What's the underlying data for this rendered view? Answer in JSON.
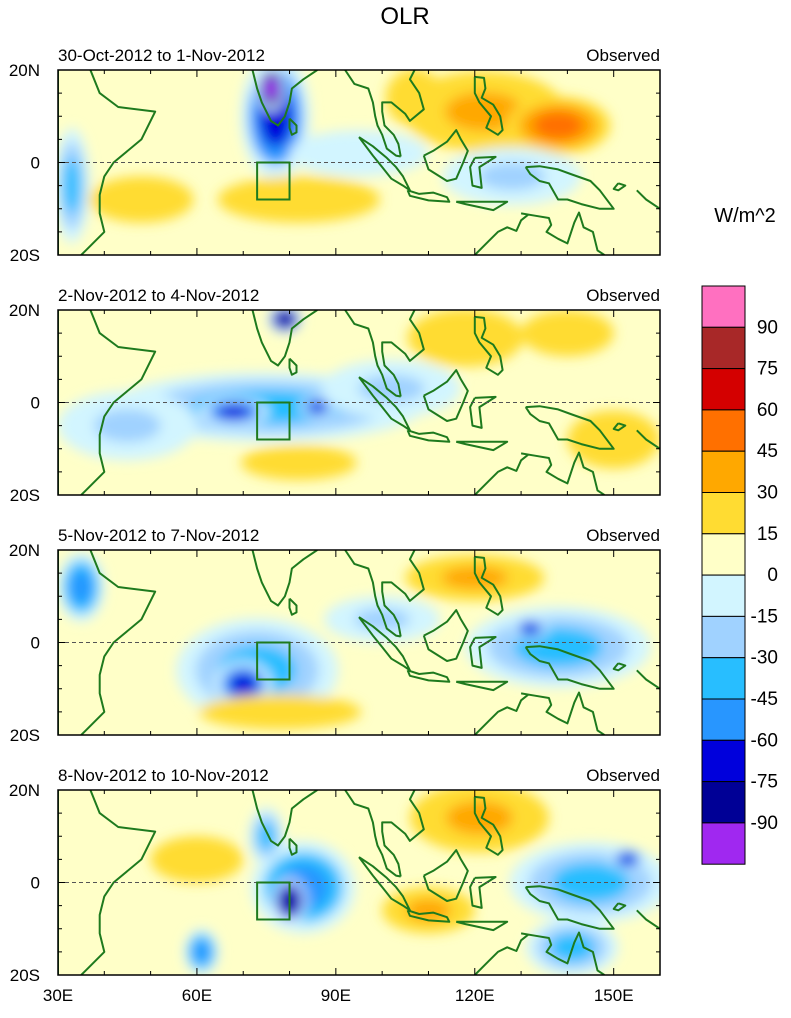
{
  "chart_data": {
    "type": "heatmap",
    "title": "OLR",
    "colorbar": {
      "unit": "W/m^2",
      "labels": [
        "90",
        "75",
        "60",
        "45",
        "30",
        "15",
        "0",
        "-15",
        "-30",
        "-45",
        "-60",
        "-75",
        "-90"
      ],
      "colors": [
        "#ff70c0",
        "#a82828",
        "#d40000",
        "#ff7000",
        "#ffa800",
        "#ffdc32",
        "#ffffc8",
        "#d2f5ff",
        "#a0d2ff",
        "#28beff",
        "#2896ff",
        "#0000dc",
        "#000096",
        "#a028f0"
      ]
    },
    "xlim": [
      30,
      160
    ],
    "ylim": [
      -20,
      20
    ],
    "xticks": [
      {
        "v": 30,
        "label": "30E"
      },
      {
        "v": 60,
        "label": "60E"
      },
      {
        "v": 90,
        "label": "90E"
      },
      {
        "v": 120,
        "label": "120E"
      },
      {
        "v": 150,
        "label": "150E"
      }
    ],
    "yticks": [
      {
        "v": 20,
        "label": "20N"
      },
      {
        "v": 0,
        "label": "0"
      },
      {
        "v": -20,
        "label": "20S"
      }
    ],
    "box_region": {
      "lon": [
        73,
        80
      ],
      "lat": [
        -8,
        0
      ]
    },
    "panels": [
      {
        "period": "30-Oct-2012 to 1-Nov-2012",
        "tag": "Observed",
        "anomalies": [
          {
            "lon": 77,
            "lat": 10,
            "rx": 6,
            "ry": 11,
            "value": -75
          },
          {
            "lon": 76,
            "lat": 16,
            "rx": 2.5,
            "ry": 4,
            "value": -95
          },
          {
            "lon": 122,
            "lat": 11,
            "rx": 14,
            "ry": 7,
            "value": 40
          },
          {
            "lon": 138,
            "lat": 8,
            "rx": 9,
            "ry": 5,
            "value": 50
          },
          {
            "lon": 107,
            "lat": 14,
            "rx": 5,
            "ry": 5,
            "value": 20
          },
          {
            "lon": 82,
            "lat": -8,
            "rx": 14,
            "ry": 4,
            "value": 20
          },
          {
            "lon": 48,
            "lat": -8,
            "rx": 9,
            "ry": 4,
            "value": 15
          },
          {
            "lon": 33,
            "lat": -5,
            "rx": 3,
            "ry": 10,
            "value": -40
          },
          {
            "lon": 128,
            "lat": -3,
            "rx": 12,
            "ry": 5,
            "value": -20
          },
          {
            "lon": 95,
            "lat": 2,
            "rx": 12,
            "ry": 4,
            "value": -15
          }
        ]
      },
      {
        "period": "2-Nov-2012 to 4-Nov-2012",
        "tag": "Observed",
        "anomalies": [
          {
            "lon": 75,
            "lat": -1,
            "rx": 27,
            "ry": 6,
            "value": -45
          },
          {
            "lon": 68,
            "lat": -2,
            "rx": 6,
            "ry": 2.5,
            "value": -75
          },
          {
            "lon": 86,
            "lat": -1,
            "rx": 3,
            "ry": 2,
            "value": -70
          },
          {
            "lon": 79,
            "lat": 18,
            "rx": 3,
            "ry": 2.5,
            "value": -80
          },
          {
            "lon": 102,
            "lat": 3,
            "rx": 12,
            "ry": 5,
            "value": -30
          },
          {
            "lon": 118,
            "lat": 14,
            "rx": 10,
            "ry": 5,
            "value": 25
          },
          {
            "lon": 140,
            "lat": 15,
            "rx": 8,
            "ry": 4,
            "value": 20
          },
          {
            "lon": 82,
            "lat": -13,
            "rx": 10,
            "ry": 3,
            "value": 20
          },
          {
            "lon": 45,
            "lat": -5,
            "rx": 12,
            "ry": 6,
            "value": -20
          },
          {
            "lon": 150,
            "lat": -8,
            "rx": 8,
            "ry": 5,
            "value": 20
          }
        ]
      },
      {
        "period": "5-Nov-2012 to 7-Nov-2012",
        "tag": "Observed",
        "anomalies": [
          {
            "lon": 73,
            "lat": -6,
            "rx": 14,
            "ry": 9,
            "value": -45
          },
          {
            "lon": 70,
            "lat": -9,
            "rx": 5,
            "ry": 4,
            "value": -75
          },
          {
            "lon": 138,
            "lat": -1,
            "rx": 16,
            "ry": 7,
            "value": -45
          },
          {
            "lon": 132,
            "lat": 3,
            "rx": 3,
            "ry": 2,
            "value": -75
          },
          {
            "lon": 35,
            "lat": 12,
            "rx": 4,
            "ry": 6,
            "value": -50
          },
          {
            "lon": 120,
            "lat": 14,
            "rx": 12,
            "ry": 4,
            "value": 30
          },
          {
            "lon": 78,
            "lat": -15,
            "rx": 14,
            "ry": 3,
            "value": 20
          },
          {
            "lon": 100,
            "lat": 5,
            "rx": 10,
            "ry": 4,
            "value": -20
          }
        ]
      },
      {
        "period": "8-Nov-2012 to 10-Nov-2012",
        "tag": "Observed",
        "anomalies": [
          {
            "lon": 83,
            "lat": -1,
            "rx": 9,
            "ry": 8,
            "value": -60
          },
          {
            "lon": 80,
            "lat": -4,
            "rx": 3,
            "ry": 4,
            "value": -80
          },
          {
            "lon": 61,
            "lat": -15,
            "rx": 3,
            "ry": 4,
            "value": -60
          },
          {
            "lon": 75,
            "lat": 10,
            "rx": 3,
            "ry": 5,
            "value": -45
          },
          {
            "lon": 121,
            "lat": 14,
            "rx": 12,
            "ry": 6,
            "value": 30
          },
          {
            "lon": 60,
            "lat": 5,
            "rx": 8,
            "ry": 4,
            "value": 20
          },
          {
            "lon": 110,
            "lat": -6,
            "rx": 8,
            "ry": 4,
            "value": 30
          },
          {
            "lon": 145,
            "lat": 0,
            "rx": 14,
            "ry": 7,
            "value": -40
          },
          {
            "lon": 153,
            "lat": 5,
            "rx": 3,
            "ry": 2,
            "value": -75
          },
          {
            "lon": 141,
            "lat": -14,
            "rx": 8,
            "ry": 5,
            "value": -35
          }
        ]
      }
    ]
  }
}
